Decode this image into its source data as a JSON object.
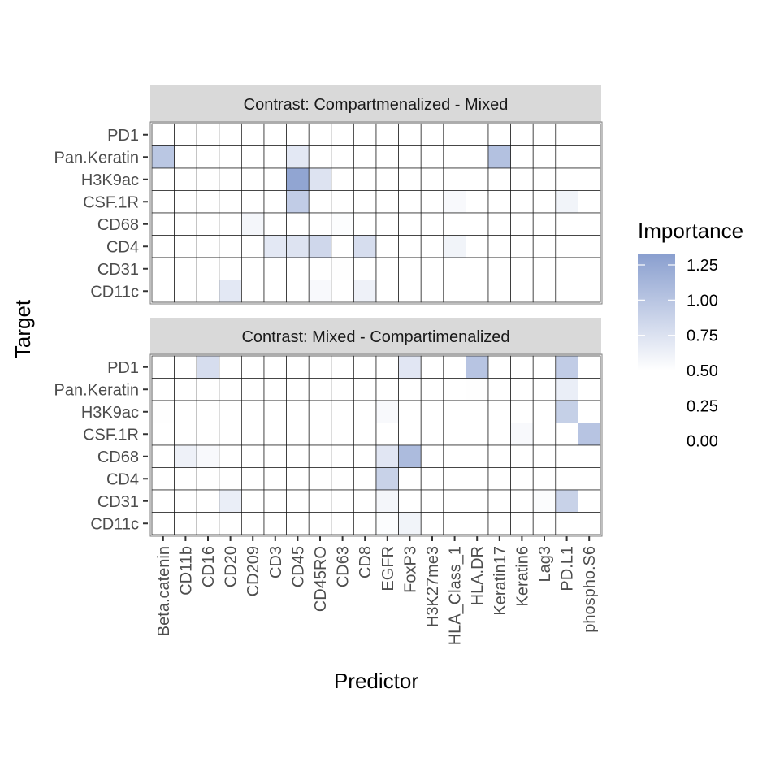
{
  "chart_data": {
    "type": "heatmap",
    "xlabel": "Predictor",
    "ylabel": "Target",
    "predictors": [
      "Beta.catenin",
      "CD11b",
      "CD16",
      "CD20",
      "CD209",
      "CD3",
      "CD45",
      "CD45RO",
      "CD63",
      "CD8",
      "EGFR",
      "FoxP3",
      "H3K27me3",
      "HLA_Class_1",
      "HLA.DR",
      "Keratin17",
      "Keratin6",
      "Lag3",
      "PD.L1",
      "phospho.S6"
    ],
    "targets_top_to_bottom": [
      "PD1",
      "Pan.Keratin",
      "H3K9ac",
      "CSF.1R",
      "CD68",
      "CD4",
      "CD31",
      "CD11c"
    ],
    "legend": {
      "title": "Importance",
      "breaks": [
        1.25,
        1.0,
        0.75,
        0.5,
        0.25,
        0.0
      ],
      "break_labels": [
        "1.25",
        "1.00",
        "0.75",
        "0.50",
        "0.25",
        "0.00"
      ],
      "low_color": "#ffffff",
      "high_color": "#8a9fcf",
      "domain": [
        0.5,
        1.35
      ]
    },
    "panels": [
      {
        "strip": "Contrast: Compartmenalized - Mixed",
        "cells": [
          {
            "target": "Pan.Keratin",
            "predictor": "Beta.catenin",
            "value": 1.0
          },
          {
            "target": "Pan.Keratin",
            "predictor": "CD45",
            "value": 0.7
          },
          {
            "target": "Pan.Keratin",
            "predictor": "Keratin17",
            "value": 1.05
          },
          {
            "target": "H3K9ac",
            "predictor": "CD45",
            "value": 1.3
          },
          {
            "target": "H3K9ac",
            "predictor": "CD45RO",
            "value": 0.75
          },
          {
            "target": "CSF.1R",
            "predictor": "CD45",
            "value": 0.95
          },
          {
            "target": "CSF.1R",
            "predictor": "HLA_Class_1",
            "value": 0.55
          },
          {
            "target": "CSF.1R",
            "predictor": "PD.L1",
            "value": 0.6
          },
          {
            "target": "CD68",
            "predictor": "CD209",
            "value": 0.58
          },
          {
            "target": "CD68",
            "predictor": "CD63",
            "value": 0.52
          },
          {
            "target": "CD4",
            "predictor": "CD3",
            "value": 0.7
          },
          {
            "target": "CD4",
            "predictor": "CD45",
            "value": 0.75
          },
          {
            "target": "CD4",
            "predictor": "CD45RO",
            "value": 0.85
          },
          {
            "target": "CD4",
            "predictor": "CD8",
            "value": 0.8
          },
          {
            "target": "CD4",
            "predictor": "HLA_Class_1",
            "value": 0.6
          },
          {
            "target": "CD31",
            "predictor": "CD63",
            "value": 0.51
          },
          {
            "target": "CD11c",
            "predictor": "CD20",
            "value": 0.7
          },
          {
            "target": "CD11c",
            "predictor": "CD45RO",
            "value": 0.55
          },
          {
            "target": "CD11c",
            "predictor": "CD8",
            "value": 0.62
          }
        ]
      },
      {
        "strip": "Contrast: Mixed - Compartimenalized",
        "cells": [
          {
            "target": "PD1",
            "predictor": "CD16",
            "value": 0.8
          },
          {
            "target": "PD1",
            "predictor": "FoxP3",
            "value": 0.72
          },
          {
            "target": "PD1",
            "predictor": "HLA.DR",
            "value": 1.02
          },
          {
            "target": "PD1",
            "predictor": "PD.L1",
            "value": 0.95
          },
          {
            "target": "Pan.Keratin",
            "predictor": "HLA.DR",
            "value": 0.51
          },
          {
            "target": "Pan.Keratin",
            "predictor": "PD.L1",
            "value": 0.65
          },
          {
            "target": "H3K9ac",
            "predictor": "Beta.catenin",
            "value": 0.51
          },
          {
            "target": "H3K9ac",
            "predictor": "EGFR",
            "value": 0.55
          },
          {
            "target": "H3K9ac",
            "predictor": "PD.L1",
            "value": 0.92
          },
          {
            "target": "CSF.1R",
            "predictor": "Keratin6",
            "value": 0.55
          },
          {
            "target": "CSF.1R",
            "predictor": "phospho.S6",
            "value": 1.02
          },
          {
            "target": "CD68",
            "predictor": "CD11b",
            "value": 0.62
          },
          {
            "target": "CD68",
            "predictor": "CD16",
            "value": 0.55
          },
          {
            "target": "CD68",
            "predictor": "EGFR",
            "value": 0.72
          },
          {
            "target": "CD68",
            "predictor": "FoxP3",
            "value": 1.1
          },
          {
            "target": "CD4",
            "predictor": "EGFR",
            "value": 0.9
          },
          {
            "target": "CD31",
            "predictor": "CD20",
            "value": 0.65
          },
          {
            "target": "CD31",
            "predictor": "EGFR",
            "value": 0.58
          },
          {
            "target": "CD31",
            "predictor": "Lag3",
            "value": 0.53
          },
          {
            "target": "CD31",
            "predictor": "PD.L1",
            "value": 0.9
          },
          {
            "target": "CD11c",
            "predictor": "EGFR",
            "value": 0.52
          },
          {
            "target": "CD11c",
            "predictor": "FoxP3",
            "value": 0.6
          }
        ]
      }
    ]
  }
}
